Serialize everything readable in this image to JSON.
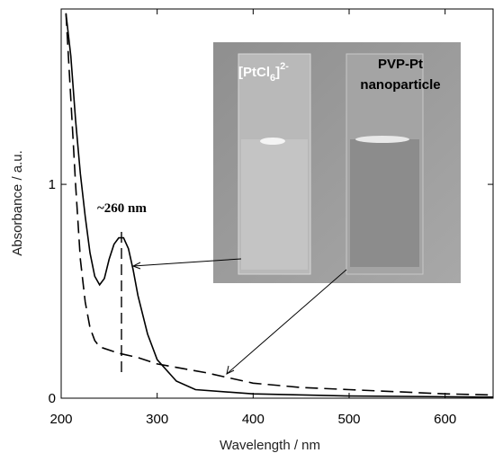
{
  "chart_data": {
    "type": "line",
    "xlabel": "Wavelength / nm",
    "ylabel": "Absorbance / a.u.",
    "xlim": [
      200,
      650
    ],
    "ylim": [
      0,
      1.82
    ],
    "xticks": [
      200,
      300,
      400,
      500,
      600
    ],
    "yticks": [
      0,
      1
    ],
    "series": [
      {
        "color": "#000000",
        "dash": "solid",
        "x": [
          205,
          210,
          215,
          220,
          225,
          230,
          235,
          240,
          245,
          250,
          255,
          260,
          265,
          270,
          275,
          280,
          290,
          300,
          320,
          340,
          400,
          500,
          650
        ],
        "values": [
          1.8,
          1.6,
          1.3,
          1.05,
          0.85,
          0.68,
          0.57,
          0.53,
          0.56,
          0.65,
          0.72,
          0.75,
          0.75,
          0.7,
          0.6,
          0.48,
          0.3,
          0.18,
          0.08,
          0.04,
          0.02,
          0.01,
          0.005
        ]
      },
      {
        "color": "#000000",
        "dash": "dashed",
        "x": [
          205,
          210,
          215,
          220,
          225,
          230,
          235,
          240,
          260,
          280,
          300,
          350,
          400,
          450,
          500,
          600,
          650
        ],
        "values": [
          1.8,
          1.4,
          1.0,
          0.65,
          0.45,
          0.33,
          0.27,
          0.24,
          0.21,
          0.19,
          0.16,
          0.12,
          0.07,
          0.05,
          0.04,
          0.02,
          0.015
        ]
      }
    ],
    "peak_label": "~260 nm",
    "photo_label_left": [
      "[PtCl",
      "6",
      "]",
      "2-"
    ],
    "photo_label_right": [
      "PVP-Pt",
      "nanoparticle"
    ]
  }
}
